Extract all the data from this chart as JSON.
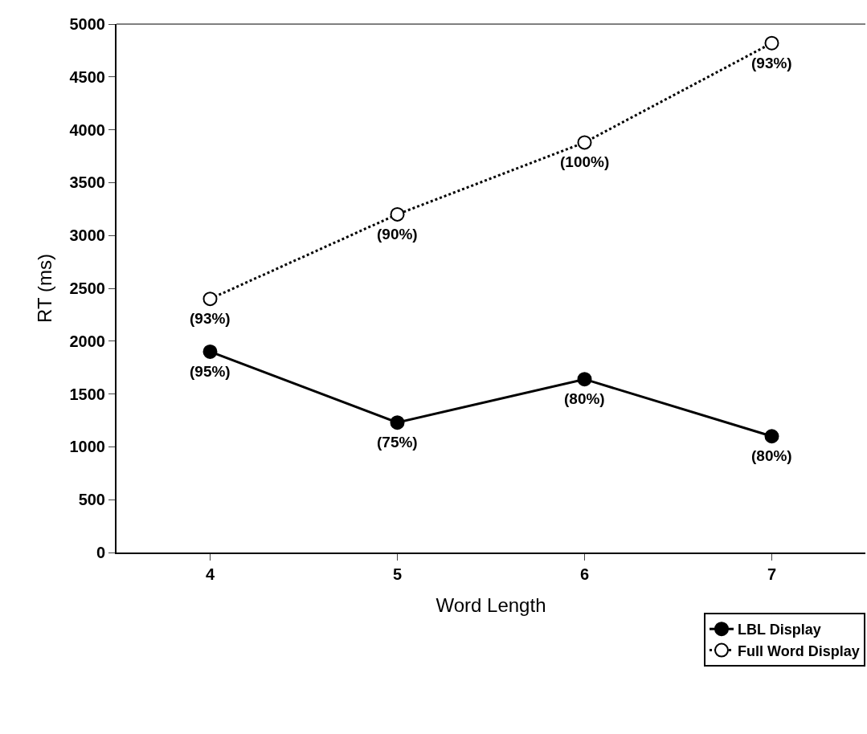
{
  "chart_data": {
    "type": "line",
    "xlabel": "Word Length",
    "ylabel": "RT (ms)",
    "categories": [
      "4",
      "5",
      "6",
      "7"
    ],
    "series": [
      {
        "name": "LBL Display",
        "color": "#000000",
        "values": [
          1900,
          1230,
          1640,
          1100
        ],
        "line_style": "solid"
      },
      {
        "name": "Full Word Display",
        "color": "#000000",
        "values": [
          2400,
          3200,
          3880,
          4820
        ],
        "line_style": "dotted"
      }
    ],
    "annotations": [
      {
        "text": "(95%)",
        "x": "4",
        "y": 1900
      },
      {
        "text": "(75%)",
        "x": "5",
        "y": 1230
      },
      {
        "text": "(80%)",
        "x": "6",
        "y": 1640
      },
      {
        "text": "(80%)",
        "x": "7",
        "y": 1100
      },
      {
        "text": "(93%)",
        "x": "4",
        "y": 2400
      },
      {
        "text": "(90%)",
        "x": "5",
        "y": 3200
      },
      {
        "text": "(100%)",
        "x": "6",
        "y": 3880
      },
      {
        "text": "(93%)",
        "x": "7",
        "y": 4820
      }
    ],
    "ylim": [
      0,
      5000
    ],
    "yticks": [
      0,
      500,
      1000,
      1500,
      2000,
      2500,
      3000,
      3500,
      4000,
      4500,
      5000
    ],
    "legend": "bottom right",
    "marker": "circle"
  }
}
